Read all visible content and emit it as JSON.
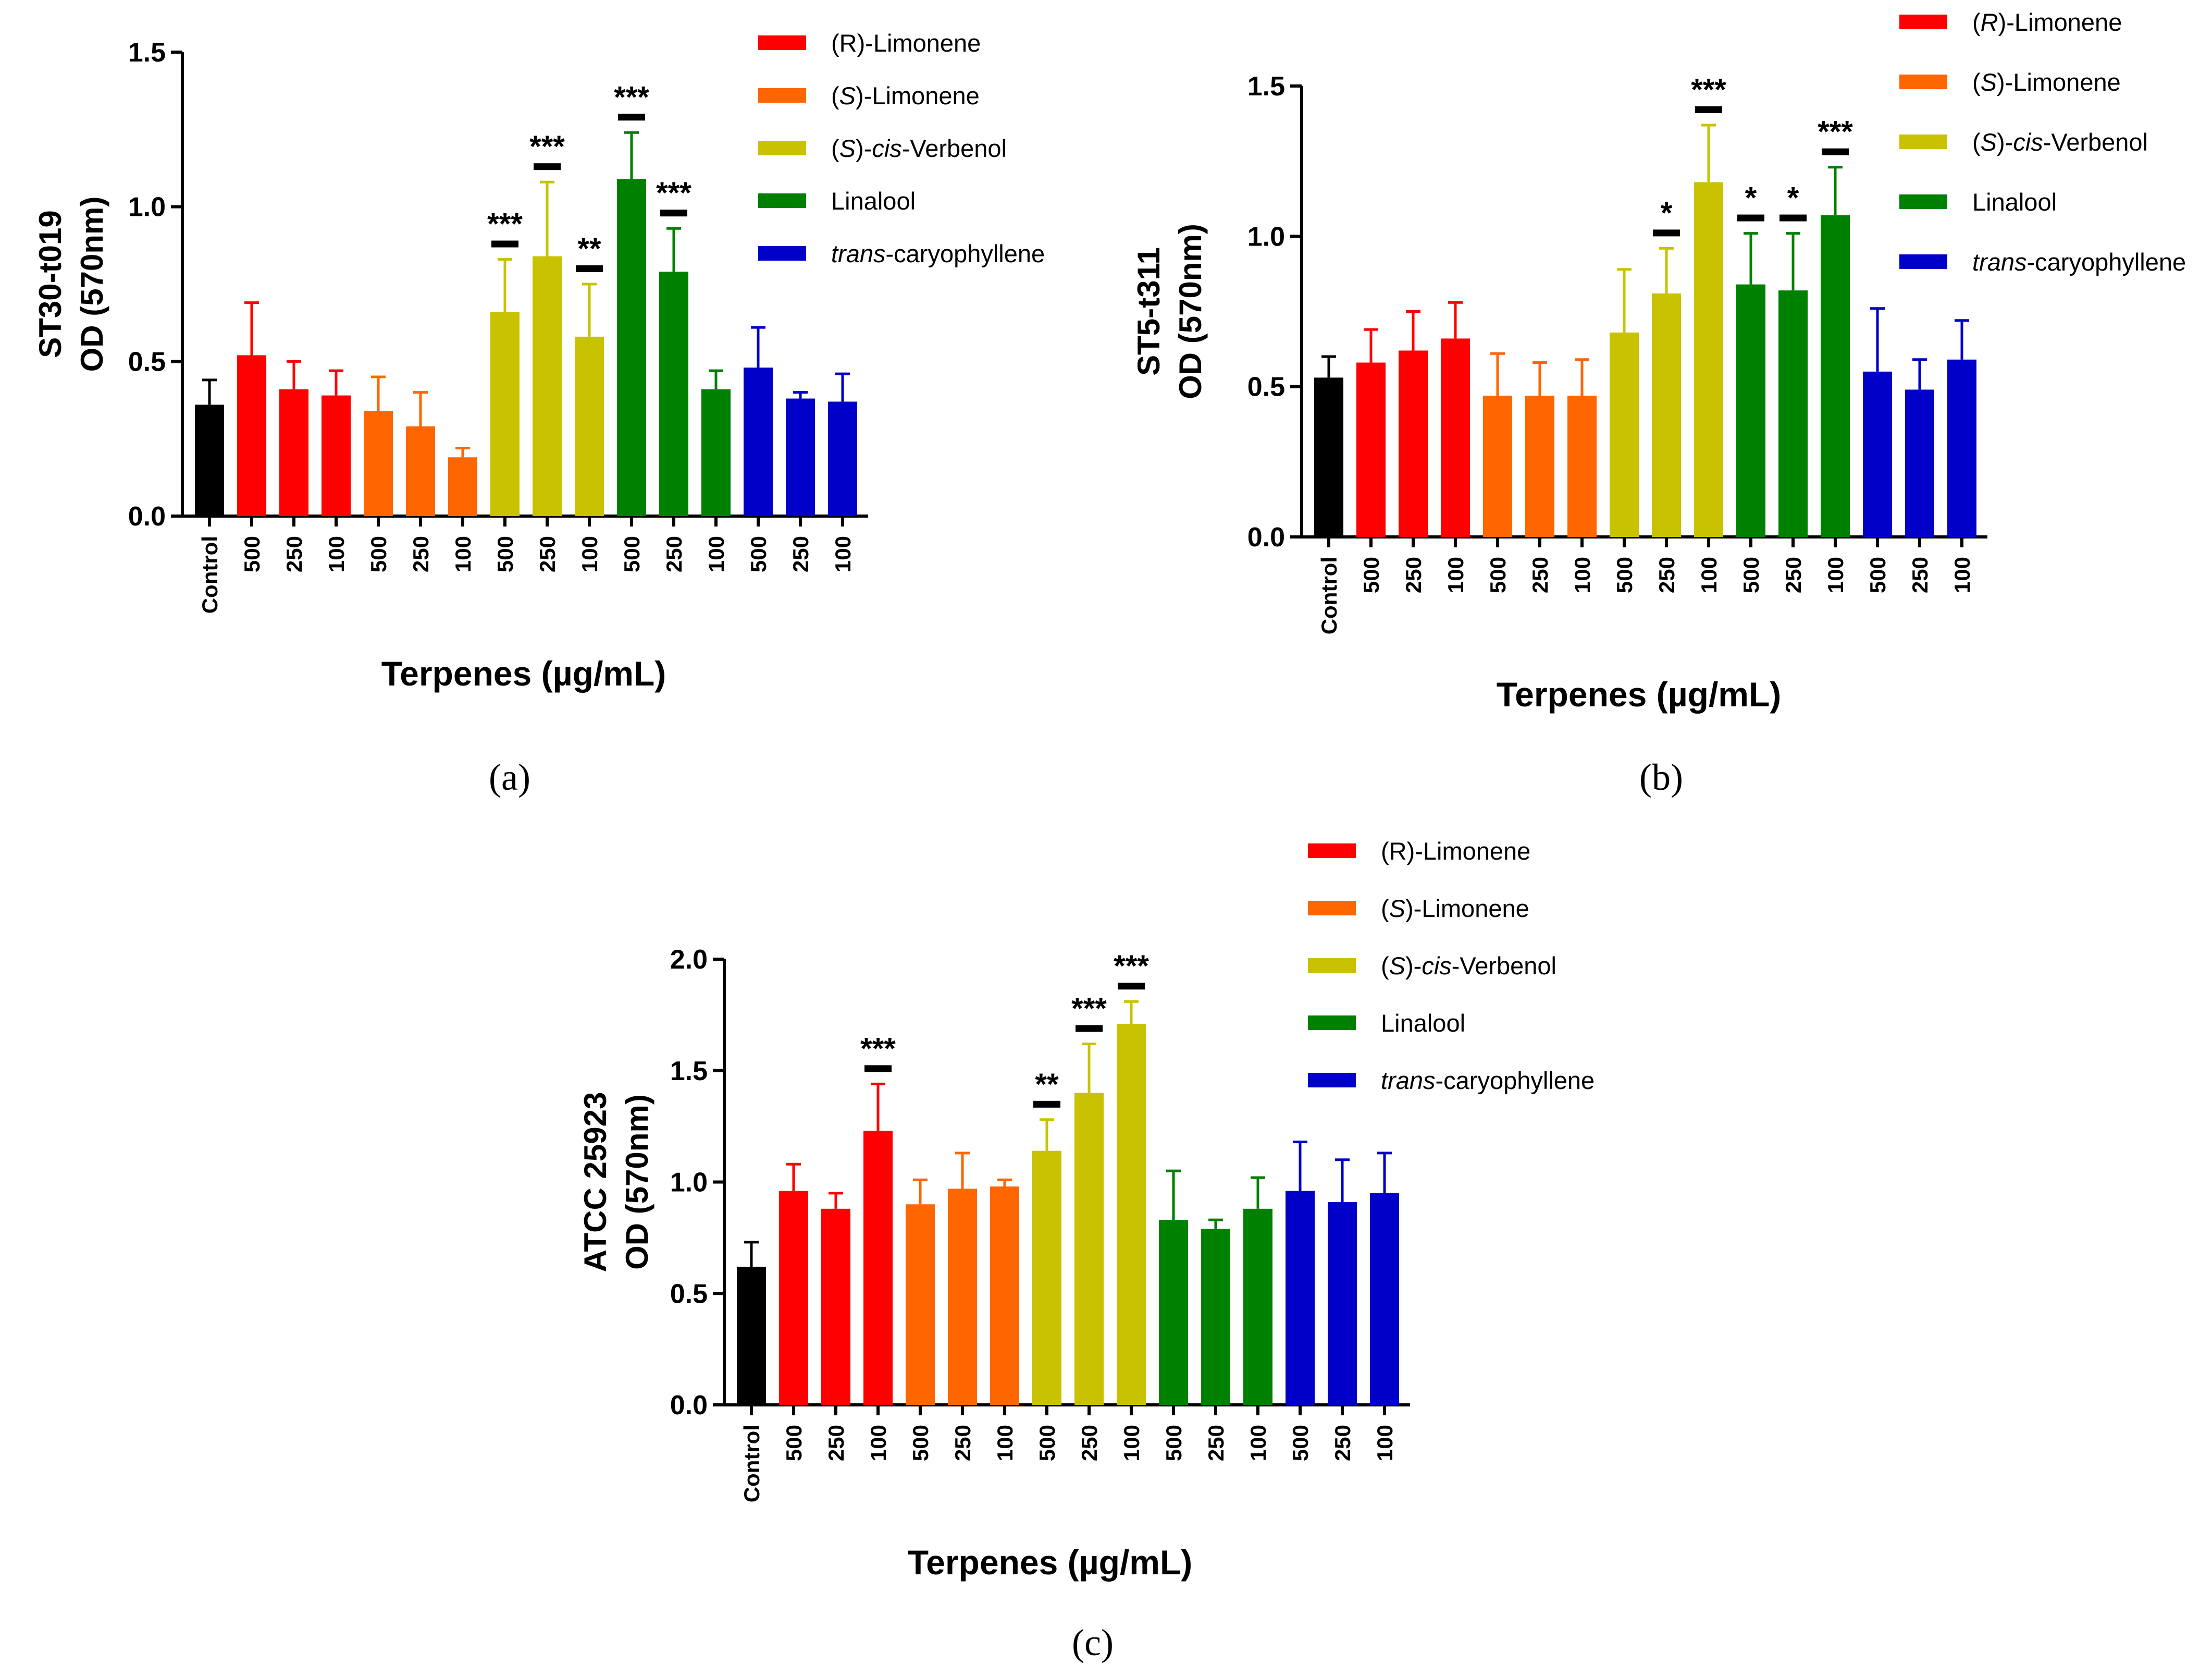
{
  "chart_data": [
    {
      "id": "a",
      "type": "bar",
      "caption": "(a)",
      "ylabel_line1": "ST30-t019",
      "ylabel_line2": "OD (570nm)",
      "xlabel": "Terpenes (µg/mL)",
      "ylim": [
        0,
        1.5
      ],
      "yticks": [
        "0.0",
        "0.5",
        "1.0",
        "1.5"
      ],
      "ytick_values": [
        0,
        0.5,
        1.0,
        1.5
      ],
      "categories": [
        "Control",
        "500",
        "250",
        "100",
        "500",
        "250",
        "100",
        "500",
        "250",
        "100",
        "500",
        "250",
        "100",
        "500",
        "250",
        "100"
      ],
      "groups": [
        "Control",
        "(R)-Limonene",
        "(R)-Limonene",
        "(R)-Limonene",
        "(S)-Limonene",
        "(S)-Limonene",
        "(S)-Limonene",
        "(S)-cis-Verbenol",
        "(S)-cis-Verbenol",
        "(S)-cis-Verbenol",
        "Linalool",
        "Linalool",
        "Linalool",
        "trans-caryophyllene",
        "trans-caryophyllene",
        "trans-caryophyllene"
      ],
      "values": [
        0.36,
        0.52,
        0.41,
        0.39,
        0.34,
        0.29,
        0.19,
        0.66,
        0.84,
        0.58,
        1.09,
        0.79,
        0.41,
        0.48,
        0.38,
        0.37
      ],
      "errors": [
        0.08,
        0.17,
        0.09,
        0.08,
        0.11,
        0.11,
        0.03,
        0.17,
        0.24,
        0.17,
        0.15,
        0.14,
        0.06,
        0.13,
        0.02,
        0.09
      ],
      "significance": [
        "",
        "",
        "",
        "",
        "",
        "",
        "",
        "***",
        "***",
        "**",
        "***",
        "***",
        "",
        "",
        "",
        ""
      ],
      "legend": [
        {
          "pre": "(R)-Limonene",
          "ital": "",
          "post": "",
          "color": "#ff0000"
        },
        {
          "pre": "(",
          "ital": "S",
          "post": ")-Limonene",
          "color": "#ff6600"
        },
        {
          "pre": "(",
          "ital": "S",
          "post": ")-",
          "ital2": "cis",
          "post2": "-Verbenol",
          "color": "#c8c200"
        },
        {
          "pre": "Linalool",
          "ital": "",
          "post": "",
          "color": "#008000"
        },
        {
          "pre": "",
          "ital": "trans",
          "post": "-caryophyllene",
          "color": "#0000c8"
        }
      ]
    },
    {
      "id": "b",
      "type": "bar",
      "caption": "(b)",
      "ylabel_line1": "ST5-t311",
      "ylabel_line2": "OD (570nm)",
      "xlabel": "Terpenes (µg/mL)",
      "ylim": [
        0,
        1.5
      ],
      "yticks": [
        "0.0",
        "0.5",
        "1.0",
        "1.5"
      ],
      "ytick_values": [
        0,
        0.5,
        1.0,
        1.5
      ],
      "categories": [
        "Control",
        "500",
        "250",
        "100",
        "500",
        "250",
        "100",
        "500",
        "250",
        "100",
        "500",
        "250",
        "100",
        "500",
        "250",
        "100"
      ],
      "groups": [
        "Control",
        "(R)-Limonene",
        "(R)-Limonene",
        "(R)-Limonene",
        "(S)-Limonene",
        "(S)-Limonene",
        "(S)-Limonene",
        "(S)-cis-Verbenol",
        "(S)-cis-Verbenol",
        "(S)-cis-Verbenol",
        "Linalool",
        "Linalool",
        "Linalool",
        "trans-caryophyllene",
        "trans-caryophyllene",
        "trans-caryophyllene"
      ],
      "values": [
        0.53,
        0.58,
        0.62,
        0.66,
        0.47,
        0.47,
        0.47,
        0.68,
        0.81,
        1.18,
        0.84,
        0.82,
        1.07,
        0.55,
        0.49,
        0.59
      ],
      "errors": [
        0.07,
        0.11,
        0.13,
        0.12,
        0.14,
        0.11,
        0.12,
        0.21,
        0.15,
        0.19,
        0.17,
        0.19,
        0.16,
        0.21,
        0.1,
        0.13
      ],
      "significance": [
        "",
        "",
        "",
        "",
        "",
        "",
        "",
        "",
        "*",
        "***",
        "*",
        "*",
        "***",
        "",
        "",
        ""
      ],
      "legend": [
        {
          "pre": "(",
          "ital": "R",
          "post": ")-Limonene",
          "color": "#ff0000"
        },
        {
          "pre": "(",
          "ital": "S",
          "post": ")-Limonene",
          "color": "#ff6600"
        },
        {
          "pre": "(",
          "ital": "S",
          "post": ")-",
          "ital2": "cis",
          "post2": "-Verbenol",
          "color": "#c8c200"
        },
        {
          "pre": "Linalool",
          "ital": "",
          "post": "",
          "color": "#008000"
        },
        {
          "pre": "",
          "ital": "trans",
          "post": "-caryophyllene",
          "color": "#0000c8"
        }
      ]
    },
    {
      "id": "c",
      "type": "bar",
      "caption": "(c)",
      "ylabel_line1": "ATCC 25923",
      "ylabel_line2": "OD (570nm)",
      "xlabel": "Terpenes (µg/mL)",
      "ylim": [
        0,
        2.0
      ],
      "yticks": [
        "0.0",
        "0.5",
        "1.0",
        "1.5",
        "2.0"
      ],
      "ytick_values": [
        0,
        0.5,
        1.0,
        1.5,
        2.0
      ],
      "categories": [
        "Control",
        "500",
        "250",
        "100",
        "500",
        "250",
        "100",
        "500",
        "250",
        "100",
        "500",
        "250",
        "100",
        "500",
        "250",
        "100"
      ],
      "groups": [
        "Control",
        "(R)-Limonene",
        "(R)-Limonene",
        "(R)-Limonene",
        "(S)-Limonene",
        "(S)-Limonene",
        "(S)-Limonene",
        "(S)-cis-Verbenol",
        "(S)-cis-Verbenol",
        "(S)-cis-Verbenol",
        "Linalool",
        "Linalool",
        "Linalool",
        "trans-caryophyllene",
        "trans-caryophyllene",
        "trans-caryophyllene"
      ],
      "values": [
        0.62,
        0.96,
        0.88,
        1.23,
        0.9,
        0.97,
        0.98,
        1.14,
        1.4,
        1.71,
        0.83,
        0.79,
        0.88,
        0.96,
        0.91,
        0.95
      ],
      "errors": [
        0.11,
        0.12,
        0.07,
        0.21,
        0.11,
        0.16,
        0.03,
        0.14,
        0.22,
        0.1,
        0.22,
        0.04,
        0.14,
        0.22,
        0.19,
        0.18
      ],
      "significance": [
        "",
        "",
        "",
        "***",
        "",
        "",
        "",
        "**",
        "***",
        "***",
        "",
        "",
        "",
        "",
        "",
        ""
      ],
      "legend": [
        {
          "pre": "(R)-Limonene",
          "ital": "",
          "post": "",
          "color": "#ff0000"
        },
        {
          "pre": "(",
          "ital": "S",
          "post": ")-Limonene",
          "color": "#ff6600"
        },
        {
          "pre": "(",
          "ital": "S",
          "post": ")-",
          "ital2": "cis",
          "post2": "-Verbenol",
          "color": "#c8c200"
        },
        {
          "pre": "Linalool",
          "ital": "",
          "post": "",
          "color": "#008000"
        },
        {
          "pre": "",
          "ital": "trans",
          "post": "-caryophyllene",
          "color": "#0000c8"
        }
      ]
    }
  ],
  "colors": {
    "Control": "#000000",
    "(R)-Limonene": "#ff0000",
    "(S)-Limonene": "#ff6600",
    "(S)-cis-Verbenol": "#c8c200",
    "Linalool": "#008000",
    "trans-caryophyllene": "#0000c8"
  }
}
